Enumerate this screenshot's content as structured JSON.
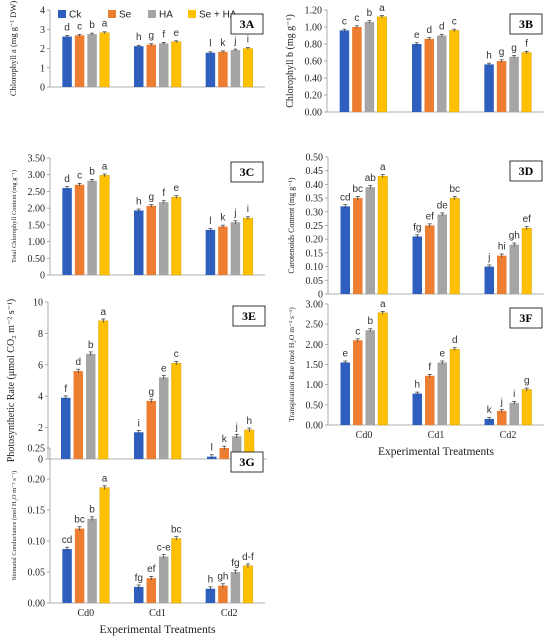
{
  "legend": [
    {
      "name": "Ck",
      "color": "#2e5fbf"
    },
    {
      "name": "Se",
      "color": "#ed7d31"
    },
    {
      "name": "HA",
      "color": "#a5a5a5"
    },
    {
      "name": "Se + HA",
      "color": "#ffc000"
    }
  ],
  "chart_data": [
    {
      "panel": "3A",
      "type": "bar",
      "ylabel": "Chlorophyll a (mg g⁻¹ DW)",
      "ylim": [
        0,
        4
      ],
      "yticks": [
        "0",
        "1",
        "2",
        "3",
        "4"
      ],
      "categories": [
        "Cd0",
        "Cd1",
        "Cd2"
      ],
      "series": [
        {
          "name": "Ck",
          "values": [
            2.62,
            2.12,
            1.78
          ],
          "letters": [
            "d",
            "h",
            "l"
          ]
        },
        {
          "name": "Se",
          "values": [
            2.68,
            2.2,
            1.83
          ],
          "letters": [
            "c",
            "g",
            "k"
          ]
        },
        {
          "name": "HA",
          "values": [
            2.75,
            2.27,
            1.92
          ],
          "letters": [
            "b",
            "f",
            "j"
          ]
        },
        {
          "name": "Se + HA",
          "values": [
            2.82,
            2.35,
            2.0
          ],
          "letters": [
            "a",
            "e",
            "i"
          ]
        }
      ]
    },
    {
      "panel": "3B",
      "type": "bar",
      "ylabel": "Chlorophyll b (mg g⁻¹)",
      "ylim": [
        0,
        1.2
      ],
      "yticks": [
        "0.00",
        "0.20",
        "0.40",
        "0.60",
        "0.80",
        "1.00",
        "1.20"
      ],
      "categories": [
        "Cd0",
        "Cd1",
        "Cd2"
      ],
      "series": [
        {
          "name": "Ck",
          "values": [
            0.96,
            0.8,
            0.56
          ],
          "letters": [
            "c",
            "e",
            "h"
          ]
        },
        {
          "name": "Se",
          "values": [
            1.0,
            0.86,
            0.6
          ],
          "letters": [
            "c",
            "d",
            "g"
          ]
        },
        {
          "name": "HA",
          "values": [
            1.06,
            0.9,
            0.65
          ],
          "letters": [
            "b",
            "d",
            "g"
          ]
        },
        {
          "name": "Se + HA",
          "values": [
            1.12,
            0.96,
            0.7
          ],
          "letters": [
            "a",
            "c",
            "f"
          ]
        }
      ]
    },
    {
      "panel": "3C",
      "type": "bar",
      "ylabel": "Total Chlorophyll Content (mg g⁻¹)",
      "ylim": [
        0,
        3.5
      ],
      "yticks": [
        "0",
        "0.50",
        "1.00",
        "1.50",
        "2.00",
        "2.50",
        "3.00",
        "3.50"
      ],
      "categories": [
        "Cd0",
        "Cd1",
        "Cd2"
      ],
      "series": [
        {
          "name": "Ck",
          "values": [
            2.6,
            1.93,
            1.35
          ],
          "letters": [
            "d",
            "h",
            "l"
          ]
        },
        {
          "name": "Se",
          "values": [
            2.7,
            2.07,
            1.45
          ],
          "letters": [
            "c",
            "g",
            "k"
          ]
        },
        {
          "name": "HA",
          "values": [
            2.82,
            2.18,
            1.58
          ],
          "letters": [
            "b",
            "f",
            "j"
          ]
        },
        {
          "name": "Se + HA",
          "values": [
            2.98,
            2.33,
            1.7
          ],
          "letters": [
            "a",
            "e",
            "i"
          ]
        }
      ]
    },
    {
      "panel": "3D",
      "type": "bar",
      "ylabel": "Carotenoids Content (mg g⁻¹)",
      "ylim": [
        0,
        0.5
      ],
      "yticks": [
        "0",
        "0.05",
        "0.10",
        "0.15",
        "0.20",
        "0.25",
        "0.30",
        "0.35",
        "0.40",
        "0.45",
        "0.50"
      ],
      "categories": [
        "Cd0",
        "Cd1",
        "Cd2"
      ],
      "series": [
        {
          "name": "Ck",
          "values": [
            0.32,
            0.21,
            0.1
          ],
          "letters": [
            "cd",
            "fg",
            "j"
          ]
        },
        {
          "name": "Se",
          "values": [
            0.35,
            0.25,
            0.14
          ],
          "letters": [
            "bc",
            "ef",
            "hi"
          ]
        },
        {
          "name": "HA",
          "values": [
            0.39,
            0.29,
            0.18
          ],
          "letters": [
            "ab",
            "de",
            "gh"
          ]
        },
        {
          "name": "Se + HA",
          "values": [
            0.43,
            0.35,
            0.24
          ],
          "letters": [
            "a",
            "bc",
            "ef"
          ]
        }
      ]
    },
    {
      "panel": "3E",
      "type": "bar",
      "ylabel": "Photosynthetic Rate (μmol CO₂ m⁻² s⁻¹)",
      "ylim": [
        0,
        10
      ],
      "yticks": [
        "0",
        "2",
        "4",
        "6",
        "8",
        "10"
      ],
      "categories": [
        "Cd0",
        "Cd1",
        "Cd2"
      ],
      "series": [
        {
          "name": "Ck",
          "values": [
            3.9,
            1.7,
            0.15
          ],
          "letters": [
            "f",
            "i",
            "l"
          ]
        },
        {
          "name": "Se",
          "values": [
            5.6,
            3.7,
            0.7
          ],
          "letters": [
            "d",
            "g",
            "k"
          ]
        },
        {
          "name": "HA",
          "values": [
            6.7,
            5.2,
            1.45
          ],
          "letters": [
            "b",
            "e",
            "j"
          ]
        },
        {
          "name": "Se + HA",
          "values": [
            8.8,
            6.1,
            1.85
          ],
          "letters": [
            "a",
            "c",
            "h"
          ]
        }
      ]
    },
    {
      "panel": "3F",
      "type": "bar",
      "ylabel": "Transpiration Rate (mol H₂O m⁻² s⁻¹)",
      "xlabel": "Experimental Treatments",
      "ylim": [
        0,
        3
      ],
      "yticks": [
        "0.00",
        "0.50",
        "1.00",
        "1.50",
        "2.00",
        "2.50",
        "3.00"
      ],
      "categories": [
        "Cd0",
        "Cd1",
        "Cd2"
      ],
      "series": [
        {
          "name": "Ck",
          "values": [
            1.55,
            0.78,
            0.15
          ],
          "letters": [
            "e",
            "h",
            "k"
          ]
        },
        {
          "name": "Se",
          "values": [
            2.1,
            1.22,
            0.35
          ],
          "letters": [
            "c",
            "f",
            "j"
          ]
        },
        {
          "name": "HA",
          "values": [
            2.35,
            1.55,
            0.55
          ],
          "letters": [
            "b",
            "e",
            "i"
          ]
        },
        {
          "name": "Se + HA",
          "values": [
            2.78,
            1.88,
            0.88
          ],
          "letters": [
            "a",
            "d",
            "g"
          ]
        }
      ]
    },
    {
      "panel": "3G",
      "type": "bar",
      "ylabel": "Stomatal Conductance (mol H₂O m⁻² s⁻¹)",
      "xlabel": "Experimental Treatments",
      "ylim": [
        0,
        0.25
      ],
      "yticks": [
        "0.00",
        "0.05",
        "0.10",
        "0.15",
        "0.20",
        "0.25"
      ],
      "categories": [
        "Cd0",
        "Cd1",
        "Cd2"
      ],
      "series": [
        {
          "name": "Ck",
          "values": [
            0.087,
            0.026,
            0.023
          ],
          "letters": [
            "cd",
            "fg",
            "h"
          ]
        },
        {
          "name": "Se",
          "values": [
            0.12,
            0.04,
            0.028
          ],
          "letters": [
            "bc",
            "ef",
            "gh"
          ]
        },
        {
          "name": "HA",
          "values": [
            0.136,
            0.075,
            0.05
          ],
          "letters": [
            "b",
            "c-e",
            "fg"
          ]
        },
        {
          "name": "Se + HA",
          "values": [
            0.186,
            0.104,
            0.06
          ],
          "letters": [
            "a",
            "bc",
            "d-f"
          ]
        }
      ]
    }
  ]
}
